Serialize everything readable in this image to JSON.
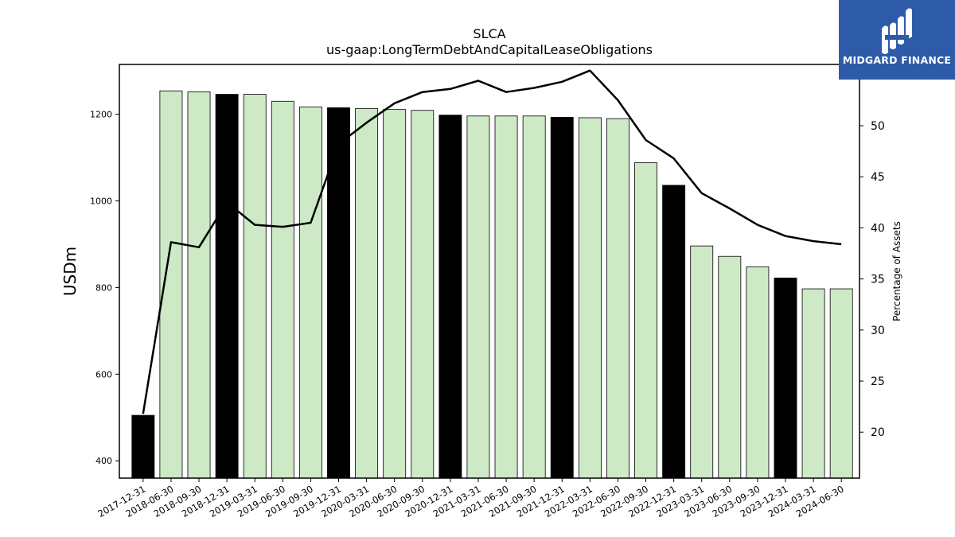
{
  "chart_data": {
    "type": "bar",
    "title": "SLCA",
    "subtitle": "us-gaap:LongTermDebtAndCapitalLeaseObligations",
    "ylabel": "USDm",
    "y2label": "Percentage of Assets",
    "ylim": [
      360,
      1315
    ],
    "y2lim": [
      15.5,
      56
    ],
    "yticks": [
      400,
      600,
      800,
      1000,
      1200
    ],
    "y2ticks": [
      20,
      25,
      30,
      35,
      40,
      45,
      50
    ],
    "categories": [
      "2017-12-31",
      "2018-06-30",
      "2018-09-30",
      "2018-12-31",
      "2019-03-31",
      "2019-06-30",
      "2019-09-30",
      "2019-12-31",
      "2020-03-31",
      "2020-06-30",
      "2020-09-30",
      "2020-12-31",
      "2021-03-31",
      "2021-06-30",
      "2021-09-30",
      "2021-12-31",
      "2022-03-31",
      "2022-06-30",
      "2022-09-30",
      "2022-12-31",
      "2023-03-31",
      "2023-06-30",
      "2023-09-30",
      "2023-12-31",
      "2024-03-31",
      "2024-06-30"
    ],
    "series": [
      {
        "values": [
          505,
          1254,
          1252,
          1246,
          1246,
          1230,
          1217,
          1215,
          1213,
          1211,
          1209,
          1198,
          1196,
          1196,
          1196,
          1193,
          1192,
          1190,
          1088,
          1036,
          896,
          872,
          848,
          822,
          797,
          797
        ]
      },
      {
        "values": [
          21.8,
          38.6,
          38.1,
          42.5,
          40.3,
          40.1,
          40.5,
          48.2,
          50.3,
          52.2,
          53.3,
          53.6,
          54.4,
          53.3,
          53.7,
          54.3,
          55.4,
          52.5,
          48.6,
          46.8,
          43.4,
          41.9,
          40.3,
          39.2,
          38.7,
          38.4
        ]
      }
    ],
    "annual_bar_color": "#000000",
    "quarter_bar_color": "#cde9c6",
    "line_color": "#000000"
  },
  "logo": {
    "text": "MIDGARD FINANCE",
    "color": "#2d5ba8"
  }
}
